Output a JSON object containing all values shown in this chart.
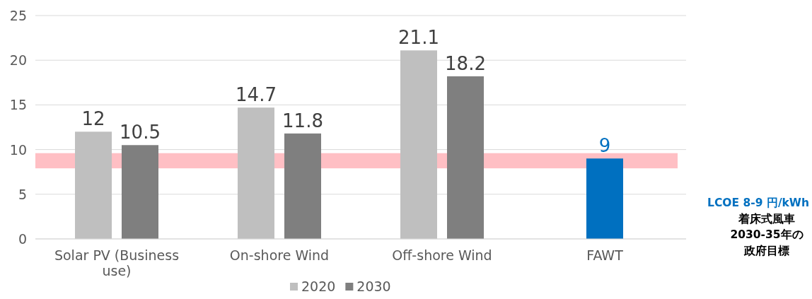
{
  "chart_data": {
    "type": "bar",
    "categories": [
      "Solar PV (Business use)",
      "On-shore Wind",
      "Off-shore Wind",
      "FAWT"
    ],
    "series": [
      {
        "name": "2020",
        "color": "#bfbfbf",
        "values": [
          12,
          14.7,
          21.1,
          null
        ]
      },
      {
        "name": "2030",
        "color": "#7f7f7f",
        "values": [
          10.5,
          11.8,
          18.2,
          null
        ]
      },
      {
        "color": "#0070c0",
        "values": [
          null,
          null,
          null,
          9
        ]
      }
    ],
    "ylim": [
      0,
      25
    ],
    "yticks": [
      0,
      5,
      10,
      15,
      20,
      25
    ],
    "grid": "y",
    "data_labels": true,
    "legend": "bottom",
    "bands": [
      {
        "axis": "y",
        "from": 7.9,
        "to": 9.6,
        "color": "#ffbfc4"
      }
    ],
    "annotations": [
      "LCOE 8-9 円/kWh",
      "着床式風車",
      "2030-35年の",
      "政府目標"
    ]
  }
}
